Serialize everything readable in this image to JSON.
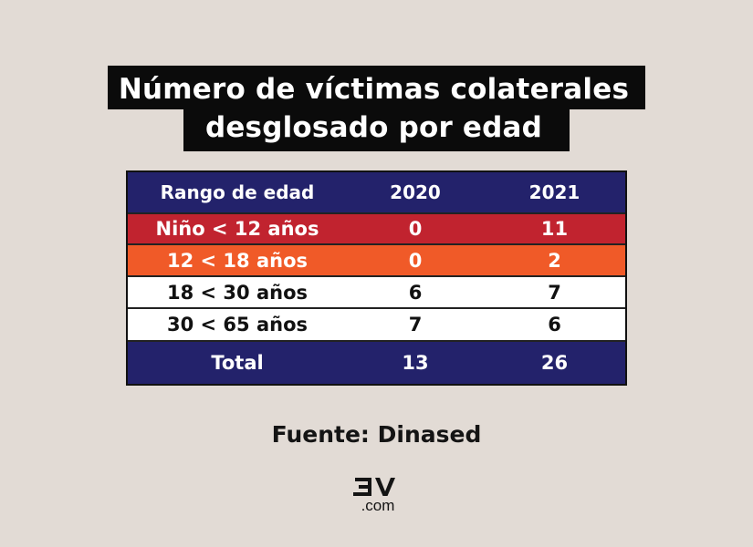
{
  "title": {
    "line1": "Número de víctimas colaterales",
    "line2": "desglosado por edad"
  },
  "table": {
    "headers": [
      "Rango de edad",
      "2020",
      "2021"
    ],
    "rows": [
      {
        "range": "Niño < 12 años",
        "y2020": "0",
        "y2021": "11"
      },
      {
        "range": "12 < 18 años",
        "y2020": "0",
        "y2021": "2"
      },
      {
        "range": "18 < 30 años",
        "y2020": "6",
        "y2021": "7"
      },
      {
        "range": "30 < 65 años",
        "y2020": "7",
        "y2021": "6"
      }
    ],
    "total": {
      "label": "Total",
      "y2020": "13",
      "y2021": "26"
    }
  },
  "source": "Fuente: Dinased",
  "logo": {
    "text": "ƐV",
    "domain": ".com"
  },
  "colors": {
    "background": "#e2dbd5",
    "navy": "#23226b",
    "red": "#c1232f",
    "orange": "#f05a28",
    "title_bg": "#0b0b0b"
  }
}
